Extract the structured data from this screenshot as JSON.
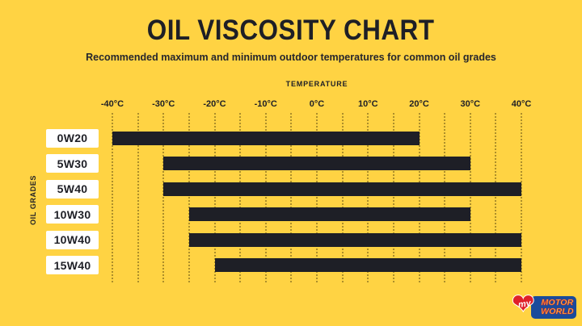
{
  "page": {
    "title": "OIL VISCOSITY CHART",
    "subtitle": "Recommended maximum and minimum outdoor temperatures for common oil grades"
  },
  "chart": {
    "x_axis_title": "TEMPERATURE",
    "y_axis_title": "OIL GRADES",
    "x_min": -40,
    "x_max": 40,
    "grid_step": 5,
    "ticks": [
      {
        "label": "-40°C",
        "value": -40
      },
      {
        "label": "-30°C",
        "value": -30
      },
      {
        "label": "-20°C",
        "value": -20
      },
      {
        "label": "-10°C",
        "value": -10
      },
      {
        "label": "0°C",
        "value": 0
      },
      {
        "label": "10°C",
        "value": 10
      },
      {
        "label": "20°C",
        "value": 20
      },
      {
        "label": "30°C",
        "value": 30
      },
      {
        "label": "40°C",
        "value": 40
      }
    ],
    "rows": [
      {
        "label": "0W20",
        "min": -40,
        "max": 20
      },
      {
        "label": "5W30",
        "min": -30,
        "max": 30
      },
      {
        "label": "5W40",
        "min": -30,
        "max": 40
      },
      {
        "label": "10W30",
        "min": -25,
        "max": 30
      },
      {
        "label": "10W40",
        "min": -25,
        "max": 40
      },
      {
        "label": "15W40",
        "min": -20,
        "max": 40
      }
    ]
  },
  "chart_data": {
    "type": "bar",
    "orientation": "horizontal",
    "title": "OIL VISCOSITY CHART",
    "subtitle": "Recommended maximum and minimum outdoor temperatures for common oil grades",
    "xlabel": "TEMPERATURE",
    "ylabel": "OIL GRADES",
    "xlim": [
      -40,
      40
    ],
    "x_tick_labels": [
      "-40°C",
      "-30°C",
      "-20°C",
      "-10°C",
      "0°C",
      "10°C",
      "20°C",
      "30°C",
      "40°C"
    ],
    "grid": "dotted vertical lines every 5°C",
    "legend": "none",
    "categories": [
      "0W20",
      "5W30",
      "5W40",
      "10W30",
      "10W40",
      "15W40"
    ],
    "series": [
      {
        "name": "recommended outdoor temperature range (°C)",
        "ranges": [
          [
            -40,
            20
          ],
          [
            -30,
            30
          ],
          [
            -30,
            40
          ],
          [
            -25,
            30
          ],
          [
            -25,
            40
          ],
          [
            -20,
            40
          ]
        ]
      }
    ]
  },
  "logo": {
    "heart_text": "my",
    "name_line1": "MOTOR",
    "name_line2": "WORLD"
  },
  "colors": {
    "background": "#FFD343",
    "bar": "#1E1F26",
    "label_box": "#FFFFFF",
    "grid_dots": "#6B5612",
    "logo_blue": "#1A4B9B",
    "logo_red": "#E02128",
    "logo_text": "#FFD343"
  }
}
